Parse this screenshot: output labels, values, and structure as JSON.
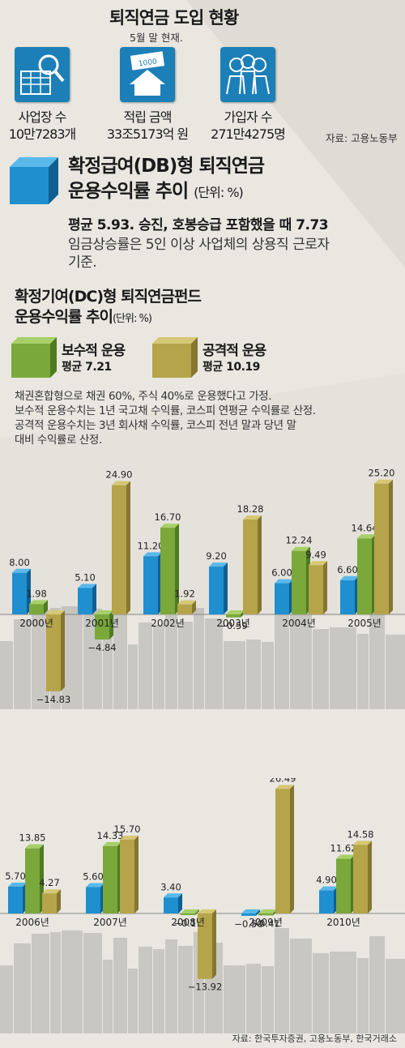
{
  "header": {
    "title": "퇴직연금 도입 현황",
    "subtitle": "5월 말 현재.",
    "source": "자료: 고용노동부"
  },
  "stats": [
    {
      "label": "사업장 수",
      "value": "10만7283개",
      "icon": "building-search-icon"
    },
    {
      "label": "적립 금액",
      "value": "33조5173억 원",
      "icon": "money-house-icon"
    },
    {
      "label": "가입자 수",
      "value": "271만4275명",
      "icon": "people-group-icon"
    }
  ],
  "db_section": {
    "title_line1": "확정급여(DB)형 퇴직연금",
    "title_line2": "운용수익률 추이",
    "unit": "(단위: %)",
    "average": "평균 5.93. 승진, 호봉승급 포함했을 때 7.73",
    "note_line1": "임금상승률은 5인 이상 사업체의 상용직 근로자",
    "note_line2": "기준."
  },
  "dc_section": {
    "title_line1": "확정기여(DC)형 퇴직연금펀드",
    "title_line2": "운용수익률 추이",
    "unit": "(단위: %)",
    "legend": [
      {
        "name": "보수적 운용",
        "avg": "평균 7.21",
        "color": "#7aa83a"
      },
      {
        "name": "공격적 운용",
        "avg": "평균 10.19",
        "color": "#b5a44a"
      }
    ],
    "notes": [
      "채권혼합형으로 채권 60%, 주식 40%로 운용했다고 가정.",
      "보수적 운용수치는 1년 국고채 수익률, 코스피 연평균 수익률로 산정.",
      "공격적 운용수치는 3년 회사채 수익률, 코스피 전년 말과 당년 말",
      "대비 수익률로 산정."
    ]
  },
  "footer": {
    "source": "자료: 한국투자증권, 고용노동부, 한국거래소"
  },
  "colors": {
    "db": "#1f8fcf",
    "conservative": "#7aa83a",
    "aggressive": "#b5a44a"
  },
  "chart_data": [
    {
      "type": "bar",
      "categories": [
        "2000년",
        "2001년",
        "2002년",
        "2003년",
        "2004년",
        "2005년"
      ],
      "series": [
        {
          "values": [
            8.0,
            5.1,
            11.2,
            9.2,
            6.0,
            6.6
          ],
          "labels": [
            "8.00",
            "5.10",
            "11.20",
            "9.20",
            "6.00",
            "6.60"
          ]
        },
        {
          "values": [
            1.98,
            -4.84,
            16.7,
            -0.59,
            12.24,
            14.64
          ],
          "labels": [
            "1.98",
            "−4.84",
            "16.70",
            "−0.59",
            "12.24",
            "14.64"
          ]
        },
        {
          "values": [
            -14.83,
            24.9,
            1.92,
            18.28,
            9.49,
            25.2
          ],
          "labels": [
            "−14.83",
            "24.90",
            "1.92",
            "18.28",
            "9.49",
            "25.20"
          ]
        }
      ]
    },
    {
      "type": "bar",
      "categories": [
        "2006년",
        "2007년",
        "2008년",
        "2009년",
        "2010년"
      ],
      "series": [
        {
          "values": [
            5.7,
            5.6,
            3.4,
            -0.5,
            4.9
          ],
          "labels": [
            "5.70",
            "5.60",
            "3.40",
            "−0.50",
            "4.90"
          ]
        },
        {
          "values": [
            13.85,
            14.33,
            -0.17,
            -0.41,
            11.62
          ],
          "labels": [
            "13.85",
            "14.33",
            "−0.17",
            "−0.41",
            "11.62"
          ]
        },
        {
          "values": [
            4.27,
            15.7,
            -13.92,
            26.49,
            14.58
          ],
          "labels": [
            "4.27",
            "15.70",
            "−13.92",
            "26.49",
            "14.58"
          ]
        }
      ]
    }
  ]
}
